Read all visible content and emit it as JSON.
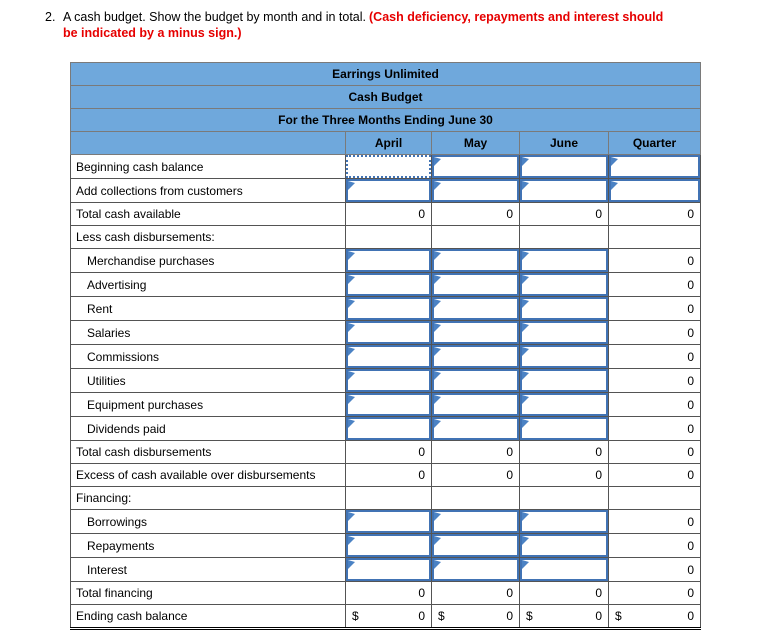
{
  "instruction": {
    "number": "2.",
    "text": "A cash budget. Show the budget by month and in total.",
    "red_text": "(Cash deficiency, repayments and interest should be indicated by a minus sign.)"
  },
  "table": {
    "title": "Earrings Unlimited",
    "subtitle": "Cash Budget",
    "period": "For the Three Months Ending June 30",
    "columns": [
      "April",
      "May",
      "June",
      "Quarter"
    ],
    "rows": [
      {
        "label": "Beginning cash balance",
        "indent": false,
        "cells": [
          "input_active",
          "input",
          "input",
          "input"
        ]
      },
      {
        "label": "Add collections from customers",
        "indent": false,
        "cells": [
          "input",
          "input",
          "input",
          "input"
        ]
      },
      {
        "label": "Total cash available",
        "indent": false,
        "cells": [
          "zero",
          "zero",
          "zero",
          "zero"
        ]
      },
      {
        "label": "Less cash disbursements:",
        "indent": false,
        "cells": [
          "blank",
          "blank",
          "blank",
          "blank"
        ]
      },
      {
        "label": "Merchandise purchases",
        "indent": true,
        "cells": [
          "input",
          "input",
          "input",
          "zero"
        ]
      },
      {
        "label": "Advertising",
        "indent": true,
        "cells": [
          "input",
          "input",
          "input",
          "zero"
        ]
      },
      {
        "label": "Rent",
        "indent": true,
        "cells": [
          "input",
          "input",
          "input",
          "zero"
        ]
      },
      {
        "label": "Salaries",
        "indent": true,
        "cells": [
          "input",
          "input",
          "input",
          "zero"
        ]
      },
      {
        "label": "Commissions",
        "indent": true,
        "cells": [
          "input",
          "input",
          "input",
          "zero"
        ]
      },
      {
        "label": "Utilities",
        "indent": true,
        "cells": [
          "input",
          "input",
          "input",
          "zero"
        ]
      },
      {
        "label": "Equipment purchases",
        "indent": true,
        "cells": [
          "input",
          "input",
          "input",
          "zero"
        ]
      },
      {
        "label": "Dividends paid",
        "indent": true,
        "cells": [
          "input",
          "input",
          "input",
          "zero"
        ]
      },
      {
        "label": "Total cash disbursements",
        "indent": false,
        "cells": [
          "zero",
          "zero",
          "zero",
          "zero"
        ]
      },
      {
        "label": "Excess of cash available over disbursements",
        "indent": false,
        "cells": [
          "zero",
          "zero",
          "zero",
          "zero"
        ]
      },
      {
        "label": "Financing:",
        "indent": false,
        "cells": [
          "blank",
          "blank",
          "blank",
          "blank"
        ]
      },
      {
        "label": "Borrowings",
        "indent": true,
        "cells": [
          "input",
          "input",
          "input",
          "zero"
        ]
      },
      {
        "label": "Repayments",
        "indent": true,
        "cells": [
          "input",
          "input",
          "input",
          "zero"
        ]
      },
      {
        "label": "Interest",
        "indent": true,
        "cells": [
          "input",
          "input",
          "input",
          "zero"
        ]
      },
      {
        "label": "Total financing",
        "indent": false,
        "cells": [
          "zero",
          "zero",
          "zero",
          "zero"
        ]
      },
      {
        "label": "Ending cash balance",
        "indent": false,
        "cells": [
          "currency_zero",
          "currency_zero",
          "currency_zero",
          "currency_zero"
        ],
        "double_underline": true
      }
    ]
  },
  "display": {
    "zero": "0",
    "dollar": "$",
    "empty_input_value": ""
  },
  "colors": {
    "header_bg": "#6FA8DC",
    "input_border": "#4173B4",
    "input_flag": "#4B82C4",
    "red_text": "#E60000",
    "gridline": "#545454"
  }
}
